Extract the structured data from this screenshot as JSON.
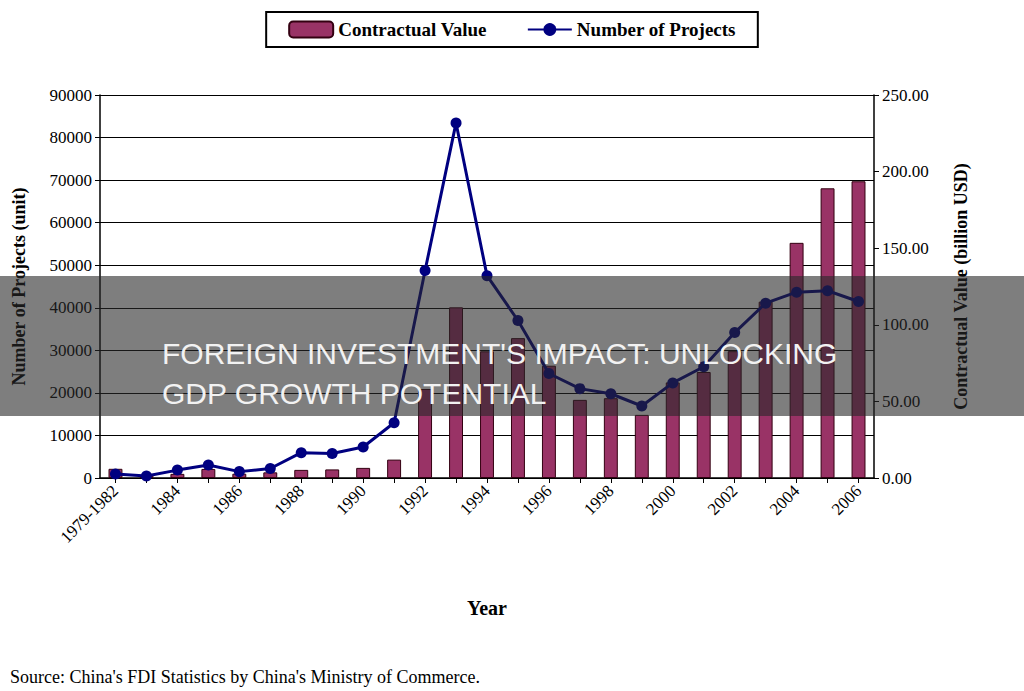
{
  "chart_data": {
    "type": "bar",
    "title": "FOREIGN INVESTMENT'S IMPACT: UNLOCKING GDP GROWTH POTENTIAL",
    "annotation": "Source: China's FDI Statistics by China's Ministry of Commerce.",
    "x_label": "Year",
    "y_label": "Number of Projects (unit)",
    "y2_label": "Contractual Value (billion USD)",
    "categories": [
      "1979-1982",
      null,
      "1984",
      null,
      "1986",
      null,
      "1988",
      null,
      "1990",
      null,
      "1992",
      null,
      "1994",
      null,
      "1996",
      null,
      "1998",
      null,
      "2000",
      null,
      "2002",
      null,
      "2004",
      null,
      "2006"
    ],
    "series": [
      {
        "name": "Contractual Value",
        "type": "bar",
        "axis": "y2",
        "color": "#993366",
        "values": [
          6.0,
          1.7,
          2.7,
          5.9,
          2.8,
          3.7,
          5.3,
          5.6,
          6.6,
          12.0,
          58.1,
          111.4,
          82.7,
          91.3,
          73.3,
          51.0,
          52.1,
          41.2,
          62.4,
          69.2,
          82.8,
          115.1,
          153.5,
          189.1,
          193.7
        ]
      },
      {
        "name": "Number of Projects",
        "type": "line",
        "color": "#000080",
        "marker": "circle",
        "values": [
          922,
          470,
          1856,
          3073,
          1498,
          2233,
          5945,
          5779,
          7273,
          12978,
          48764,
          83437,
          47549,
          37011,
          24556,
          21001,
          19799,
          16918,
          22347,
          26140,
          34171,
          41081,
          43664,
          44001,
          41473
        ]
      }
    ],
    "ylim": [
      0,
      90000
    ],
    "yticks": [
      0,
      10000,
      20000,
      30000,
      40000,
      50000,
      60000,
      70000,
      80000,
      90000
    ],
    "y2lim": [
      0,
      250
    ],
    "y2ticks": [
      {
        "value": 0,
        "label": "0.00"
      },
      {
        "value": 50,
        "label": "50.00"
      },
      {
        "value": 100,
        "label": "100.00"
      },
      {
        "value": 150,
        "label": "150.00"
      },
      {
        "value": 200,
        "label": "200.00"
      },
      {
        "value": 250,
        "label": "250.00"
      }
    ],
    "grid": true,
    "legend": "top"
  }
}
